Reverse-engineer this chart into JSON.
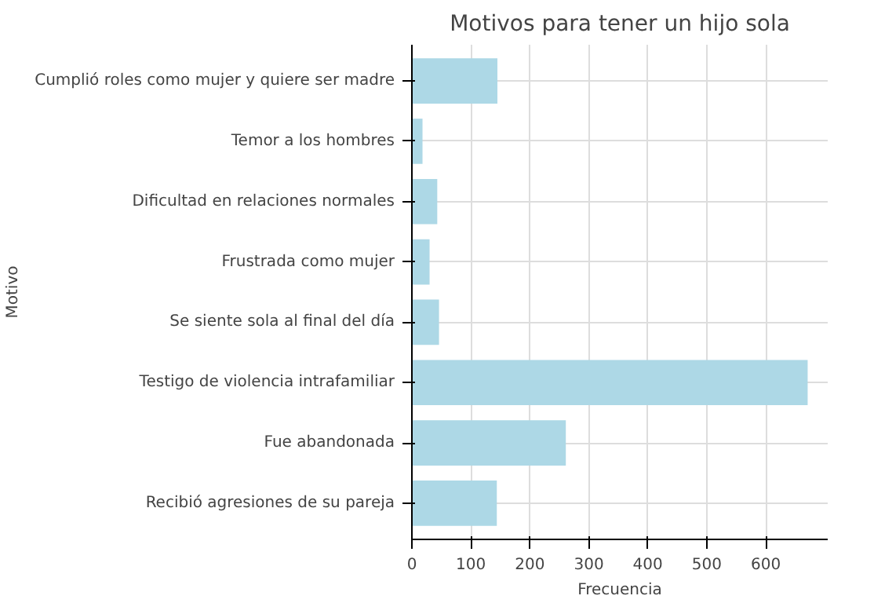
{
  "chart_data": {
    "type": "bar",
    "orientation": "horizontal",
    "title": "Motivos para tener un hijo sola",
    "xlabel": "Frecuencia",
    "ylabel": "Motivo",
    "categories": [
      "Cumplió roles como mujer y quiere ser madre",
      "Temor a los hombres",
      "Dificultad en relaciones normales",
      "Frustrada como mujer",
      "Se siente sola al final del día",
      "Testigo de violencia intrafamiliar",
      "Fue abandonada",
      "Recibió agresiones de su pareja"
    ],
    "values": [
      145,
      18,
      43,
      30,
      46,
      671,
      261,
      144
    ],
    "color": "#add8e6",
    "xlim": [
      0,
      705
    ],
    "xticks": [
      0,
      100,
      200,
      300,
      400,
      500,
      600
    ],
    "grid": true
  }
}
